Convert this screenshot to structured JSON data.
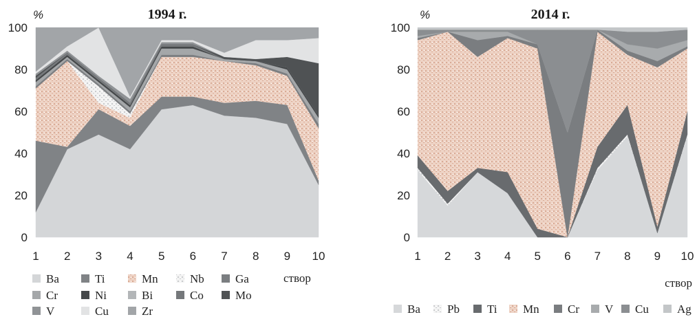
{
  "chart_data": [
    {
      "type": "area",
      "stacked": true,
      "title": "1994 г.",
      "ylabel": "%",
      "xlabel": "створ",
      "x": [
        1,
        2,
        3,
        4,
        5,
        6,
        7,
        8,
        9,
        10
      ],
      "ylim": [
        0,
        100
      ],
      "yticks": [
        0,
        20,
        40,
        60,
        80,
        100
      ],
      "grid": false,
      "legend_position": "bottom",
      "series": [
        {
          "name": "Ba",
          "color": "#d4d6d8",
          "values": [
            12,
            42,
            49,
            42,
            61,
            63,
            58,
            57,
            54,
            25
          ]
        },
        {
          "name": "Ti",
          "color": "#808386",
          "values": [
            34,
            1,
            12,
            11,
            6,
            4,
            6,
            8,
            9,
            2
          ]
        },
        {
          "name": "Mn",
          "color": "#eed3c5",
          "speckle": "#d9ab96",
          "values": [
            25,
            41,
            3,
            4,
            19,
            19,
            20,
            17,
            14,
            25
          ]
        },
        {
          "name": "Nb",
          "color": "#f3f3f3",
          "speckle": "#c9cbcd",
          "values": [
            0,
            0,
            8,
            2,
            0,
            0,
            0,
            0,
            0,
            0
          ]
        },
        {
          "name": "Ga",
          "color": "#7b7e81",
          "values": [
            1,
            1,
            1,
            1,
            1,
            1,
            0,
            1,
            1,
            2
          ]
        },
        {
          "name": "Cr",
          "color": "#a4a7a9",
          "values": [
            2,
            1,
            1,
            2,
            3,
            3,
            1,
            1,
            2,
            3
          ]
        },
        {
          "name": "Ni",
          "color": "#45484a",
          "values": [
            1,
            1,
            1,
            1,
            1,
            1,
            0,
            0,
            1,
            1
          ]
        },
        {
          "name": "Bi",
          "color": "#b3b6b8",
          "values": [
            0,
            0,
            0,
            0,
            0,
            0,
            0,
            0,
            0,
            0
          ]
        },
        {
          "name": "Co",
          "color": "#75787b",
          "values": [
            1,
            1,
            1,
            1,
            1,
            1,
            0,
            0,
            0,
            0
          ]
        },
        {
          "name": "Mo",
          "color": "#4f5254",
          "values": [
            1,
            0,
            0,
            0,
            0,
            0,
            1,
            1,
            5,
            25
          ]
        },
        {
          "name": "V",
          "color": "#909396",
          "values": [
            1,
            1,
            1,
            2,
            1,
            1,
            0,
            0,
            0,
            0
          ]
        },
        {
          "name": "Cu",
          "color": "#e2e3e4",
          "values": [
            1,
            2,
            23,
            1,
            1,
            1,
            2,
            9,
            8,
            12
          ]
        },
        {
          "name": "Zr",
          "color": "#a2a5a8",
          "values": [
            21,
            9,
            0,
            33,
            6,
            6,
            12,
            6,
            6,
            5
          ]
        }
      ]
    },
    {
      "type": "area",
      "stacked": true,
      "title": "2014 г.",
      "ylabel": "%",
      "xlabel": "створ",
      "x": [
        1,
        2,
        3,
        4,
        5,
        6,
        7,
        8,
        9,
        10
      ],
      "ylim": [
        0,
        100
      ],
      "yticks": [
        0,
        20,
        40,
        60,
        80,
        100
      ],
      "grid": false,
      "legend_position": "bottom",
      "series": [
        {
          "name": "Ba",
          "color": "#d6d8da",
          "values": [
            32,
            15,
            31,
            21,
            0,
            0,
            32,
            48,
            2,
            48
          ]
        },
        {
          "name": "Pb",
          "color": "#f4f4f4",
          "speckle": "#c9cbcd",
          "values": [
            1,
            1,
            0,
            0,
            0,
            0,
            1,
            1,
            0,
            1
          ]
        },
        {
          "name": "Ti",
          "color": "#686b6e",
          "values": [
            6,
            6,
            2,
            10,
            4,
            0,
            10,
            14,
            3,
            11
          ]
        },
        {
          "name": "Mn",
          "color": "#eed3c5",
          "speckle": "#d9ab96",
          "values": [
            55,
            76,
            53,
            64,
            86,
            0,
            55,
            24,
            76,
            30
          ]
        },
        {
          "name": "Cr",
          "color": "#7a7d80",
          "values": [
            1,
            0,
            8,
            1,
            2,
            50,
            1,
            2,
            3,
            1
          ]
        },
        {
          "name": "V",
          "color": "#a8abad",
          "values": [
            1,
            0,
            4,
            2,
            0,
            0,
            0,
            3,
            6,
            3
          ]
        },
        {
          "name": "Cu",
          "color": "#8b8e91",
          "values": [
            3,
            1,
            1,
            1,
            7,
            49,
            0,
            6,
            8,
            5
          ]
        },
        {
          "name": "Ag",
          "color": "#c3c6c8",
          "values": [
            1,
            1,
            1,
            1,
            1,
            1,
            1,
            2,
            2,
            1
          ]
        }
      ]
    }
  ]
}
